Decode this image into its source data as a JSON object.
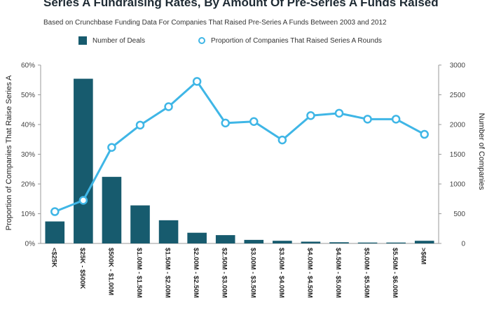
{
  "colors": {
    "bar": "#175b6e",
    "line": "#3fb6e6",
    "axis": "#999999"
  },
  "chart_data": {
    "type": "bar",
    "title": "Series A Fundraising Rates, By Amount Of Pre-Series A Funds Raised",
    "subtitle": "Based on Crunchbase Funding Data For Companies That Raised Pre-Series A Funds Between 2003 and 2012",
    "categories": [
      "<$25K",
      "$25K - $500K",
      "$500K - $1.00M",
      "$1.00M - $1.50M",
      "$1.50M - $2.00M",
      "$2.00M - $2.50M",
      "$2.50M - $3.00M",
      "$3.00M - $3.50M",
      "$3.50M - $4.00M",
      "$4.00M - $4.50M",
      "$4.50M - $5.00M",
      "$5.00M - $5.50M",
      "$5.50M - $6.00M",
      ">$6M"
    ],
    "series": [
      {
        "name": "Number of Deals",
        "type": "bar",
        "axis": "right",
        "values": [
          370,
          2770,
          1120,
          640,
          390,
          180,
          140,
          60,
          45,
          30,
          20,
          15,
          15,
          45
        ]
      },
      {
        "name": "Proportion of Companies That Raised Series A Rounds",
        "type": "line",
        "axis": "left",
        "values": [
          0.107,
          0.145,
          0.323,
          0.398,
          0.46,
          0.545,
          0.405,
          0.41,
          0.348,
          0.43,
          0.438,
          0.418,
          0.418,
          0.367
        ]
      }
    ],
    "ylabel_left": "Proportion of Companies That Raise Series A",
    "ylabel_right": "Number of Companies",
    "ylim_left": [
      0,
      0.6
    ],
    "ylim_right": [
      0,
      3000
    ],
    "yticks_left": [
      "0%",
      "10%",
      "20%",
      "30%",
      "40%",
      "50%",
      "60%"
    ],
    "yticks_right": [
      "0",
      "500",
      "1000",
      "1500",
      "2000",
      "2500",
      "3000"
    ]
  }
}
